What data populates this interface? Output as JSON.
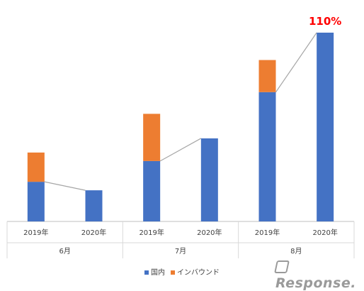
{
  "chart_data": {
    "type": "bar",
    "stacked": true,
    "categories": [
      {
        "label": "2019年",
        "group": "6月"
      },
      {
        "label": "2020年",
        "group": "6月"
      },
      {
        "label": "2019年",
        "group": "7月"
      },
      {
        "label": "2020年",
        "group": "7月"
      },
      {
        "label": "2019年",
        "group": "8月"
      },
      {
        "label": "2020年",
        "group": "8月"
      }
    ],
    "groups": [
      "6月",
      "7月",
      "8月"
    ],
    "series": [
      {
        "name": "国内",
        "color": "#4472C4",
        "values": [
          21,
          16.5,
          32,
          44,
          68.5,
          100
        ]
      },
      {
        "name": "インバウンド",
        "color": "#ED7D31",
        "values": [
          15.5,
          0,
          25,
          0,
          17,
          0
        ]
      }
    ],
    "ylim": [
      0,
      100
    ],
    "connector_lines": [
      [
        0,
        1
      ],
      [
        2,
        3
      ],
      [
        4,
        5
      ]
    ],
    "annotations": [
      {
        "category_index": 5,
        "text": "110%",
        "color": "#FF0000"
      }
    ],
    "legend_position": "bottom",
    "grid": false
  },
  "watermark": {
    "text": "Response."
  }
}
